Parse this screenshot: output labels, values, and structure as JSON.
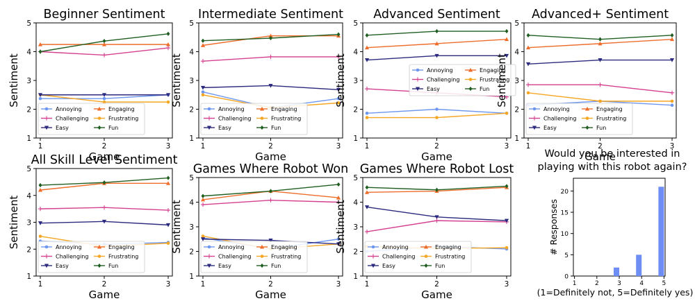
{
  "chart_data": [
    {
      "type": "line",
      "title": "Beginner Sentiment",
      "xlabel": "Game",
      "ylabel": "Sentiment",
      "x": [
        1,
        2,
        3
      ],
      "ylim": [
        1,
        5
      ],
      "yticks": [
        1,
        2,
        3,
        4,
        5
      ],
      "legend_position": "bottom",
      "series": [
        {
          "name": "Annoying",
          "values": [
            2.37,
            2.37,
            2.5
          ]
        },
        {
          "name": "Engaging",
          "values": [
            4.25,
            4.25,
            4.25
          ]
        },
        {
          "name": "Challenging",
          "values": [
            4.0,
            3.88,
            4.13
          ]
        },
        {
          "name": "Frustrating",
          "values": [
            2.5,
            2.25,
            2.25
          ]
        },
        {
          "name": "Easy",
          "values": [
            2.5,
            2.5,
            2.5
          ]
        },
        {
          "name": "Fun",
          "values": [
            4.0,
            4.37,
            4.62
          ]
        }
      ]
    },
    {
      "type": "line",
      "title": "Intermediate Sentiment",
      "xlabel": "Game",
      "ylabel": "Sentiment",
      "x": [
        1,
        2,
        3
      ],
      "ylim": [
        1,
        5
      ],
      "yticks": [
        1,
        2,
        3,
        4,
        5
      ],
      "legend_position": "bottom",
      "series": [
        {
          "name": "Annoying",
          "values": [
            2.6,
            2.05,
            2.37
          ]
        },
        {
          "name": "Engaging",
          "values": [
            4.22,
            4.55,
            4.55
          ]
        },
        {
          "name": "Challenging",
          "values": [
            3.67,
            3.82,
            3.82
          ]
        },
        {
          "name": "Frustrating",
          "values": [
            2.5,
            2.05,
            2.22
          ]
        },
        {
          "name": "Easy",
          "values": [
            2.75,
            2.82,
            2.68
          ]
        },
        {
          "name": "Fun",
          "values": [
            4.38,
            4.47,
            4.6
          ]
        }
      ]
    },
    {
      "type": "line",
      "title": "Advanced Sentiment",
      "xlabel": "Game",
      "ylabel": "Sentiment",
      "x": [
        1,
        2,
        3
      ],
      "ylim": [
        1,
        5
      ],
      "yticks": [
        1,
        2,
        3,
        4,
        5
      ],
      "legend_position": "center",
      "series": [
        {
          "name": "Annoying",
          "values": [
            1.86,
            2.0,
            1.86
          ]
        },
        {
          "name": "Engaging",
          "values": [
            4.14,
            4.28,
            4.43
          ]
        },
        {
          "name": "Challenging",
          "values": [
            2.71,
            2.57,
            2.43
          ]
        },
        {
          "name": "Frustrating",
          "values": [
            1.71,
            1.71,
            1.86
          ]
        },
        {
          "name": "Easy",
          "values": [
            3.71,
            3.86,
            3.86
          ]
        },
        {
          "name": "Fun",
          "values": [
            4.57,
            4.71,
            4.71
          ]
        }
      ]
    },
    {
      "type": "line",
      "title": "Advanced+ Sentiment",
      "xlabel": "Game",
      "ylabel": "Sentiment",
      "x": [
        1,
        2,
        3
      ],
      "ylim": [
        1,
        5
      ],
      "yticks": [
        1,
        2,
        3,
        4,
        5
      ],
      "legend_position": "bottom",
      "series": [
        {
          "name": "Annoying",
          "values": [
            2.14,
            2.28,
            2.14
          ]
        },
        {
          "name": "Engaging",
          "values": [
            4.14,
            4.28,
            4.43
          ]
        },
        {
          "name": "Challenging",
          "values": [
            2.85,
            2.85,
            2.57
          ]
        },
        {
          "name": "Frustrating",
          "values": [
            2.57,
            2.28,
            2.28
          ]
        },
        {
          "name": "Easy",
          "values": [
            3.57,
            3.71,
            3.71
          ]
        },
        {
          "name": "Fun",
          "values": [
            4.57,
            4.43,
            4.57
          ]
        }
      ]
    },
    {
      "type": "line",
      "title": "All Skill Level Sentiment",
      "xlabel": "Game",
      "ylabel": "Sentiment",
      "x": [
        1,
        2,
        3
      ],
      "ylim": [
        1,
        5
      ],
      "yticks": [
        1,
        2,
        3,
        4,
        5
      ],
      "legend_position": "bottom",
      "series": [
        {
          "name": "Annoying",
          "values": [
            2.3,
            2.18,
            2.25
          ]
        },
        {
          "name": "Engaging",
          "values": [
            4.2,
            4.45,
            4.45
          ]
        },
        {
          "name": "Challenging",
          "values": [
            3.5,
            3.55,
            3.45
          ]
        },
        {
          "name": "Frustrating",
          "values": [
            2.48,
            2.1,
            2.22
          ]
        },
        {
          "name": "Easy",
          "values": [
            2.97,
            3.03,
            2.9
          ]
        },
        {
          "name": "Fun",
          "values": [
            4.38,
            4.48,
            4.65
          ]
        }
      ]
    },
    {
      "type": "line",
      "title": "Games Where Robot Won",
      "xlabel": "Game",
      "ylabel": "Sentiment",
      "x": [
        1,
        2,
        3
      ],
      "ylim": [
        1,
        5
      ],
      "yticks": [
        1,
        2,
        3,
        4,
        5
      ],
      "legend_position": "bottom",
      "series": [
        {
          "name": "Annoying",
          "values": [
            2.55,
            2.1,
            2.5
          ]
        },
        {
          "name": "Engaging",
          "values": [
            4.1,
            4.45,
            4.18
          ]
        },
        {
          "name": "Challenging",
          "values": [
            3.9,
            4.08,
            4.0
          ]
        },
        {
          "name": "Frustrating",
          "values": [
            2.62,
            2.1,
            2.3
          ]
        },
        {
          "name": "Easy",
          "values": [
            2.5,
            2.45,
            2.3
          ]
        },
        {
          "name": "Fun",
          "values": [
            4.25,
            4.45,
            4.72
          ]
        }
      ]
    },
    {
      "type": "line",
      "title": "Games Where Robot Lost",
      "xlabel": "Game",
      "ylabel": "Sentiment",
      "x": [
        1,
        2,
        3
      ],
      "ylim": [
        1,
        5
      ],
      "yticks": [
        1,
        2,
        3,
        4,
        5
      ],
      "legend_position": "bottom",
      "series": [
        {
          "name": "Annoying",
          "values": [
            2.0,
            2.2,
            2.1
          ]
        },
        {
          "name": "Engaging",
          "values": [
            4.4,
            4.45,
            4.6
          ]
        },
        {
          "name": "Challenging",
          "values": [
            2.8,
            3.25,
            3.2
          ]
        },
        {
          "name": "Frustrating",
          "values": [
            2.2,
            2.12,
            2.15
          ]
        },
        {
          "name": "Easy",
          "values": [
            3.8,
            3.4,
            3.25
          ]
        },
        {
          "name": "Fun",
          "values": [
            4.6,
            4.5,
            4.65
          ]
        }
      ]
    },
    {
      "type": "bar",
      "title": "Would you be interested in playing with this robot again?",
      "xlabel": "(1=Definitely not, 5=Definitely yes)",
      "ylabel": "# Responses",
      "categories": [
        1,
        2,
        3,
        4,
        5
      ],
      "values": [
        0,
        0,
        2,
        5,
        21
      ],
      "ylim": [
        0,
        23
      ],
      "yticks": [
        0,
        5,
        10,
        15,
        20
      ]
    }
  ],
  "series_colors": {
    "Annoying": "#6d97ee",
    "Engaging": "#ee6d2b",
    "Challenging": "#d43f8f",
    "Frustrating": "#f5a623",
    "Easy": "#2b2a7e",
    "Fun": "#1f5e20"
  },
  "series_markers": {
    "Annoying": "circle",
    "Engaging": "triangle-up",
    "Challenging": "cross",
    "Frustrating": "circle",
    "Easy": "triangle-down",
    "Fun": "diamond"
  },
  "bar_color": "#6e8ef5"
}
